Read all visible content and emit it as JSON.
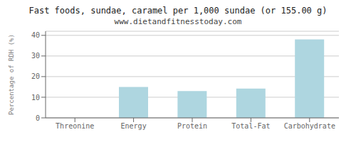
{
  "chart_data": {
    "type": "bar",
    "title": "Fast foods, sundae, caramel per 1,000 sundae (or 155.00 g)",
    "subtitle": "www.dietandfitnesstoday.com",
    "categories": [
      "Threonine",
      "Energy",
      "Protein",
      "Total-Fat",
      "Carbohydrate"
    ],
    "values": [
      0,
      15,
      13,
      14.2,
      38
    ],
    "color": "#aed6e0",
    "ylabel": "Percentage of RDH (%)",
    "ylim": [
      0,
      42
    ],
    "yticks": [
      0,
      10,
      20,
      30,
      40
    ],
    "grid": true
  }
}
